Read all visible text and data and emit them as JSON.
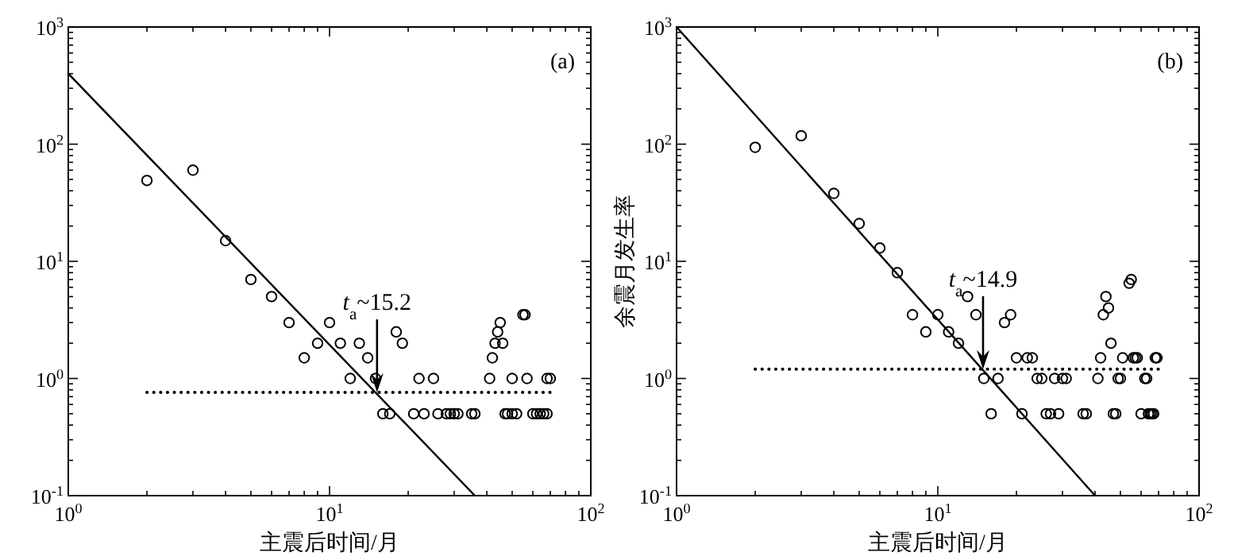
{
  "chart_data": [
    {
      "type": "scatter",
      "xlabel": "主震后时间/月",
      "log": "xy",
      "xlim": [
        1,
        100
      ],
      "ylim": [
        0.1,
        1000
      ],
      "xticks": [
        {
          "value": 1,
          "label": "10$^{0}$"
        },
        {
          "value": 10,
          "label": "10$^{1}$"
        },
        {
          "value": 100,
          "label": "10$^{2}$"
        }
      ],
      "yticks": [
        {
          "value": 0.1,
          "label": "10$^{-1}$"
        },
        {
          "value": 1,
          "label": "10$^{0}$"
        },
        {
          "value": 10,
          "label": "10$^{1}$"
        },
        {
          "value": 100,
          "label": "10$^{2}$"
        },
        {
          "value": 1000,
          "label": "10$^{3}$"
        }
      ],
      "series": [
        {
          "type": "scatter",
          "marker": "circle",
          "color": "#000000",
          "x": [
            2,
            3,
            4,
            5,
            6,
            7,
            8,
            9,
            10,
            11,
            12,
            13,
            14,
            15,
            16,
            17,
            18,
            19,
            21,
            22,
            23,
            25,
            26,
            28,
            29,
            30,
            31,
            35,
            36,
            41,
            42,
            43,
            44,
            45,
            46,
            47,
            48,
            50,
            50,
            52,
            55,
            56,
            57,
            60,
            62,
            64,
            66,
            68,
            68,
            70
          ],
          "values": [
            49,
            60,
            15,
            7,
            5,
            3,
            1.5,
            2,
            3,
            2,
            1,
            2,
            1.5,
            1,
            0.5,
            0.5,
            2.5,
            2,
            0.5,
            1,
            0.5,
            1,
            0.5,
            0.5,
            0.5,
            0.5,
            0.5,
            0.5,
            0.5,
            1,
            1.5,
            2,
            2.5,
            3,
            2,
            0.5,
            0.5,
            0.5,
            1,
            0.5,
            3.5,
            3.5,
            1,
            0.5,
            0.5,
            0.5,
            0.5,
            0.5,
            1,
            1
          ]
        },
        {
          "type": "line",
          "color": "#000000",
          "line_style": "solid",
          "x": [
            1,
            36
          ],
          "values": [
            400,
            0.1
          ]
        },
        {
          "type": "line",
          "color": "#000000",
          "line_style": "dotted",
          "x": [
            2,
            70
          ],
          "values": [
            0.76,
            0.76
          ]
        }
      ],
      "annotations": [
        {
          "text": "*t*$_{a}$~15.2",
          "x": 15.2,
          "y": 0.76
        },
        "(a)"
      ]
    },
    {
      "type": "scatter",
      "xlabel": "主震后时间/月",
      "ylabel": "余震月发生率",
      "log": "xy",
      "xlim": [
        1,
        100
      ],
      "ylim": [
        0.1,
        1000
      ],
      "xticks": [
        {
          "value": 1,
          "label": "10$^{0}$"
        },
        {
          "value": 10,
          "label": "10$^{1}$"
        },
        {
          "value": 100,
          "label": "10$^{2}$"
        }
      ],
      "yticks": [
        {
          "value": 0.1,
          "label": "10$^{-1}$"
        },
        {
          "value": 1,
          "label": "10$^{0}$"
        },
        {
          "value": 10,
          "label": "10$^{1}$"
        },
        {
          "value": 100,
          "label": "10$^{2}$"
        },
        {
          "value": 1000,
          "label": "10$^{3}$"
        }
      ],
      "series": [
        {
          "type": "scatter",
          "marker": "circle",
          "color": "#000000",
          "x": [
            2,
            3,
            4,
            5,
            6,
            7,
            8,
            9,
            10,
            11,
            12,
            13,
            14,
            15,
            16,
            17,
            18,
            19,
            20,
            21,
            22,
            23,
            24,
            25,
            26,
            27,
            28,
            29,
            30,
            31,
            36,
            37,
            41,
            42,
            43,
            44,
            45,
            46,
            47,
            48,
            49,
            50,
            51,
            54,
            55,
            56,
            57,
            58,
            60,
            62,
            63,
            64,
            65,
            66,
            67,
            68,
            69
          ],
          "values": [
            94,
            118,
            38,
            21,
            13,
            8,
            3.5,
            2.5,
            3.5,
            2.5,
            2,
            5,
            3.5,
            1,
            0.5,
            1,
            3,
            3.5,
            1.5,
            0.5,
            1.5,
            1.5,
            1,
            1,
            0.5,
            0.5,
            1,
            0.5,
            1,
            1,
            0.5,
            0.5,
            1,
            1.5,
            3.5,
            5,
            4,
            2,
            0.5,
            0.5,
            1,
            1,
            1.5,
            6.5,
            7,
            1.5,
            1.5,
            1.5,
            0.5,
            1,
            1,
            0.5,
            0.5,
            0.5,
            0.5,
            1.5,
            1.5
          ]
        },
        {
          "type": "line",
          "color": "#000000",
          "line_style": "solid",
          "x": [
            1,
            40
          ],
          "values": [
            1000,
            0.1
          ]
        },
        {
          "type": "line",
          "color": "#000000",
          "line_style": "dotted",
          "x": [
            2,
            70
          ],
          "values": [
            1.2,
            1.2
          ]
        }
      ],
      "annotations": [
        {
          "text": "*t*$_{a}$~14.9",
          "x": 14.9,
          "y": 1.2
        },
        "(b)"
      ]
    }
  ]
}
